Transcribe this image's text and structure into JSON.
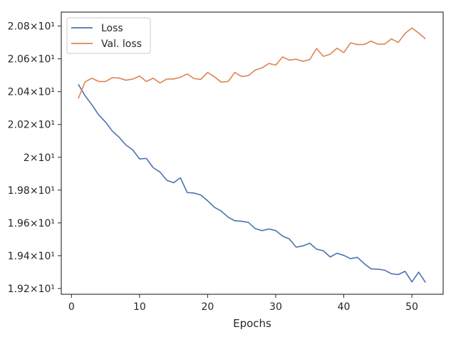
{
  "chart_data": {
    "type": "line",
    "title": "",
    "xlabel": "Epochs",
    "ylabel": "",
    "xlim": [
      -1.5,
      54.6
    ],
    "ylim": [
      19.165,
      20.885
    ],
    "x_ticks": [
      0,
      10,
      20,
      30,
      40,
      50
    ],
    "x_tick_labels": [
      "0",
      "10",
      "20",
      "30",
      "40",
      "50"
    ],
    "y_ticks": [
      19.2,
      19.4,
      19.6,
      19.8,
      20.0,
      20.2,
      20.4,
      20.6,
      20.8
    ],
    "y_tick_labels": [
      "1.92×10¹",
      "1.94×10¹",
      "1.96×10¹",
      "1.98×10¹",
      "2×10¹",
      "2.02×10¹",
      "2.04×10¹",
      "2.06×10¹",
      "2.08×10¹"
    ],
    "legend_position": "top-left",
    "grid": false,
    "x": [
      1,
      2,
      3,
      4,
      5,
      6,
      7,
      8,
      9,
      10,
      11,
      12,
      13,
      14,
      15,
      16,
      17,
      18,
      19,
      20,
      21,
      22,
      23,
      24,
      25,
      26,
      27,
      28,
      29,
      30,
      31,
      32,
      33,
      34,
      35,
      36,
      37,
      38,
      39,
      40,
      41,
      42,
      43,
      44,
      45,
      46,
      47,
      48,
      49,
      50,
      51,
      52
    ],
    "series": [
      {
        "name": "Loss",
        "color": "#4c72b0",
        "values": [
          20.445,
          20.375,
          20.32,
          20.258,
          20.215,
          20.16,
          20.122,
          20.075,
          20.045,
          19.99,
          19.993,
          19.937,
          19.91,
          19.86,
          19.845,
          19.875,
          19.785,
          19.782,
          19.77,
          19.735,
          19.695,
          19.672,
          19.635,
          19.613,
          19.61,
          19.603,
          19.565,
          19.553,
          19.563,
          19.553,
          19.52,
          19.502,
          19.452,
          19.46,
          19.476,
          19.44,
          19.43,
          19.392,
          19.415,
          19.402,
          19.382,
          19.39,
          19.352,
          19.32,
          19.318,
          19.312,
          19.29,
          19.285,
          19.305,
          19.24,
          19.3,
          19.237
        ]
      },
      {
        "name": "Val. loss",
        "color": "#dd8452",
        "values": [
          20.358,
          20.46,
          20.482,
          20.462,
          20.462,
          20.485,
          20.483,
          20.47,
          20.477,
          20.495,
          20.462,
          20.482,
          20.453,
          20.477,
          20.477,
          20.488,
          20.508,
          20.48,
          20.475,
          20.517,
          20.49,
          20.458,
          20.462,
          20.517,
          20.492,
          20.498,
          20.532,
          20.545,
          20.572,
          20.562,
          20.612,
          20.592,
          20.598,
          20.585,
          20.595,
          20.663,
          20.615,
          20.628,
          20.665,
          20.638,
          20.698,
          20.687,
          20.688,
          20.708,
          20.69,
          20.69,
          20.722,
          20.7,
          20.755,
          20.788,
          20.758,
          20.722
        ]
      }
    ]
  }
}
